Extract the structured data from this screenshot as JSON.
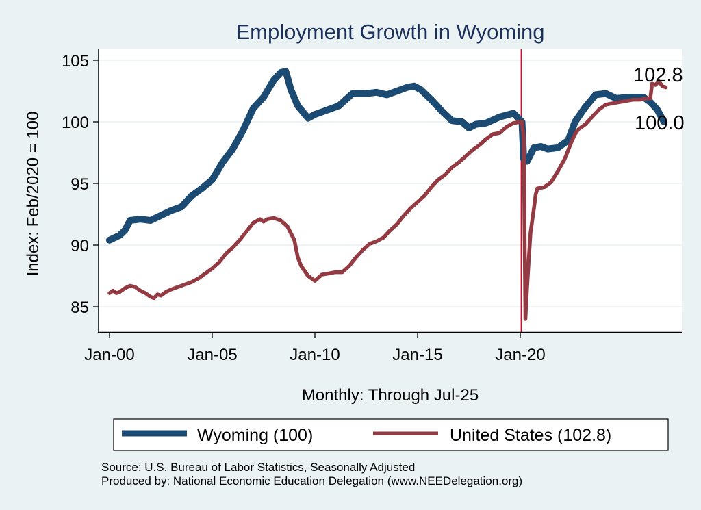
{
  "chart_data": {
    "type": "line",
    "title": "Employment Growth in Wyoming",
    "xlabel": "Monthly: Through Jul-25",
    "ylabel": "Index: Feb/2020 = 100",
    "ylim": [
      83,
      106
    ],
    "xlim_months_from_jan2000": [
      -6,
      335
    ],
    "yticks": [
      85,
      90,
      95,
      100,
      105
    ],
    "xticks": [
      {
        "label": "Jan-00",
        "month": 0
      },
      {
        "label": "Jan-05",
        "month": 60
      },
      {
        "label": "Jan-10",
        "month": 120
      },
      {
        "label": "Jan-15",
        "month": 180
      },
      {
        "label": "Jan-20",
        "month": 240
      }
    ],
    "grid": true,
    "reference_line": {
      "label": "Feb-20",
      "month": 241,
      "color": "#c8102e"
    },
    "series": [
      {
        "name": "Wyoming (100)",
        "color": "#1b4a72",
        "end_label": "100.0",
        "points": [
          [
            0,
            90.4
          ],
          [
            3,
            90.6
          ],
          [
            6,
            90.8
          ],
          [
            9,
            91.2
          ],
          [
            12,
            92.0
          ],
          [
            18,
            92.1
          ],
          [
            24,
            92.0
          ],
          [
            30,
            92.4
          ],
          [
            36,
            92.8
          ],
          [
            42,
            93.1
          ],
          [
            48,
            94.0
          ],
          [
            54,
            94.6
          ],
          [
            60,
            95.3
          ],
          [
            66,
            96.7
          ],
          [
            72,
            97.8
          ],
          [
            78,
            99.3
          ],
          [
            84,
            101.1
          ],
          [
            90,
            102.0
          ],
          [
            96,
            103.4
          ],
          [
            100,
            104.0
          ],
          [
            103,
            104.1
          ],
          [
            106,
            102.6
          ],
          [
            110,
            101.3
          ],
          [
            116,
            100.3
          ],
          [
            120,
            100.6
          ],
          [
            126,
            100.9
          ],
          [
            134,
            101.3
          ],
          [
            142,
            102.3
          ],
          [
            150,
            102.3
          ],
          [
            156,
            102.4
          ],
          [
            162,
            102.2
          ],
          [
            168,
            102.5
          ],
          [
            174,
            102.8
          ],
          [
            178,
            102.9
          ],
          [
            182,
            102.6
          ],
          [
            188,
            101.8
          ],
          [
            194,
            100.9
          ],
          [
            200,
            100.1
          ],
          [
            206,
            100.0
          ],
          [
            210,
            99.5
          ],
          [
            214,
            99.8
          ],
          [
            220,
            99.9
          ],
          [
            228,
            100.4
          ],
          [
            236,
            100.7
          ],
          [
            241,
            100.0
          ],
          [
            242,
            97.0
          ],
          [
            244,
            96.8
          ],
          [
            248,
            97.9
          ],
          [
            252,
            98.0
          ],
          [
            256,
            97.8
          ],
          [
            262,
            97.9
          ],
          [
            268,
            98.5
          ],
          [
            272,
            100.0
          ],
          [
            278,
            101.2
          ],
          [
            284,
            102.2
          ],
          [
            290,
            102.3
          ],
          [
            296,
            101.9
          ],
          [
            304,
            102.0
          ],
          [
            312,
            102.0
          ],
          [
            316,
            101.6
          ],
          [
            320,
            101.0
          ],
          [
            322,
            100.5
          ],
          [
            324,
            100.0
          ]
        ]
      },
      {
        "name": "United States (102.8)",
        "color": "#943a42",
        "end_label": "102.8",
        "points": [
          [
            0,
            86.1
          ],
          [
            2,
            86.3
          ],
          [
            4,
            86.1
          ],
          [
            6,
            86.2
          ],
          [
            9,
            86.5
          ],
          [
            12,
            86.7
          ],
          [
            15,
            86.6
          ],
          [
            18,
            86.3
          ],
          [
            21,
            86.1
          ],
          [
            24,
            85.8
          ],
          [
            26,
            85.7
          ],
          [
            28,
            86.0
          ],
          [
            30,
            85.9
          ],
          [
            33,
            86.2
          ],
          [
            36,
            86.4
          ],
          [
            40,
            86.6
          ],
          [
            44,
            86.8
          ],
          [
            48,
            87.0
          ],
          [
            52,
            87.3
          ],
          [
            56,
            87.7
          ],
          [
            60,
            88.1
          ],
          [
            64,
            88.6
          ],
          [
            68,
            89.3
          ],
          [
            72,
            89.8
          ],
          [
            76,
            90.4
          ],
          [
            80,
            91.1
          ],
          [
            84,
            91.8
          ],
          [
            88,
            92.1
          ],
          [
            90,
            91.9
          ],
          [
            92,
            92.1
          ],
          [
            96,
            92.2
          ],
          [
            100,
            92.0
          ],
          [
            104,
            91.5
          ],
          [
            108,
            90.4
          ],
          [
            110,
            89.0
          ],
          [
            112,
            88.3
          ],
          [
            116,
            87.5
          ],
          [
            120,
            87.1
          ],
          [
            124,
            87.6
          ],
          [
            128,
            87.7
          ],
          [
            132,
            87.8
          ],
          [
            136,
            87.8
          ],
          [
            140,
            88.3
          ],
          [
            144,
            89.0
          ],
          [
            148,
            89.6
          ],
          [
            152,
            90.1
          ],
          [
            156,
            90.3
          ],
          [
            160,
            90.6
          ],
          [
            164,
            91.2
          ],
          [
            168,
            91.7
          ],
          [
            172,
            92.4
          ],
          [
            176,
            93.0
          ],
          [
            180,
            93.5
          ],
          [
            184,
            94.0
          ],
          [
            188,
            94.7
          ],
          [
            192,
            95.3
          ],
          [
            196,
            95.7
          ],
          [
            200,
            96.3
          ],
          [
            204,
            96.7
          ],
          [
            208,
            97.2
          ],
          [
            212,
            97.7
          ],
          [
            216,
            98.1
          ],
          [
            220,
            98.6
          ],
          [
            224,
            99.0
          ],
          [
            228,
            99.1
          ],
          [
            232,
            99.6
          ],
          [
            236,
            99.9
          ],
          [
            240,
            100.0
          ],
          [
            241,
            100.0
          ],
          [
            242,
            98.7
          ],
          [
            243,
            84.0
          ],
          [
            244,
            86.6
          ],
          [
            245,
            88.9
          ],
          [
            246,
            91.0
          ],
          [
            247,
            92.0
          ],
          [
            248,
            93.0
          ],
          [
            249,
            94.1
          ],
          [
            250,
            94.6
          ],
          [
            254,
            94.7
          ],
          [
            258,
            95.1
          ],
          [
            262,
            96.0
          ],
          [
            266,
            97.0
          ],
          [
            268,
            97.7
          ],
          [
            270,
            98.4
          ],
          [
            272,
            99.0
          ],
          [
            274,
            99.4
          ],
          [
            278,
            99.8
          ],
          [
            282,
            100.4
          ],
          [
            286,
            101.0
          ],
          [
            290,
            101.4
          ],
          [
            294,
            101.5
          ],
          [
            298,
            101.6
          ],
          [
            302,
            101.7
          ],
          [
            306,
            101.8
          ],
          [
            310,
            101.8
          ],
          [
            314,
            101.9
          ],
          [
            316,
            101.9
          ],
          [
            317,
            103.1
          ],
          [
            319,
            103.0
          ],
          [
            321,
            103.3
          ],
          [
            323,
            102.9
          ],
          [
            325,
            102.8
          ]
        ]
      }
    ],
    "legend": {
      "placement": "bottom",
      "entries": [
        "Wyoming (100)",
        "United States (102.8)"
      ]
    },
    "notes": [
      "Source: U.S. Bureau of Labor Statistics, Seasonally Adjusted",
      "Produced by: National Economic Education Delegation (www.NEEDelegation.org)"
    ]
  }
}
